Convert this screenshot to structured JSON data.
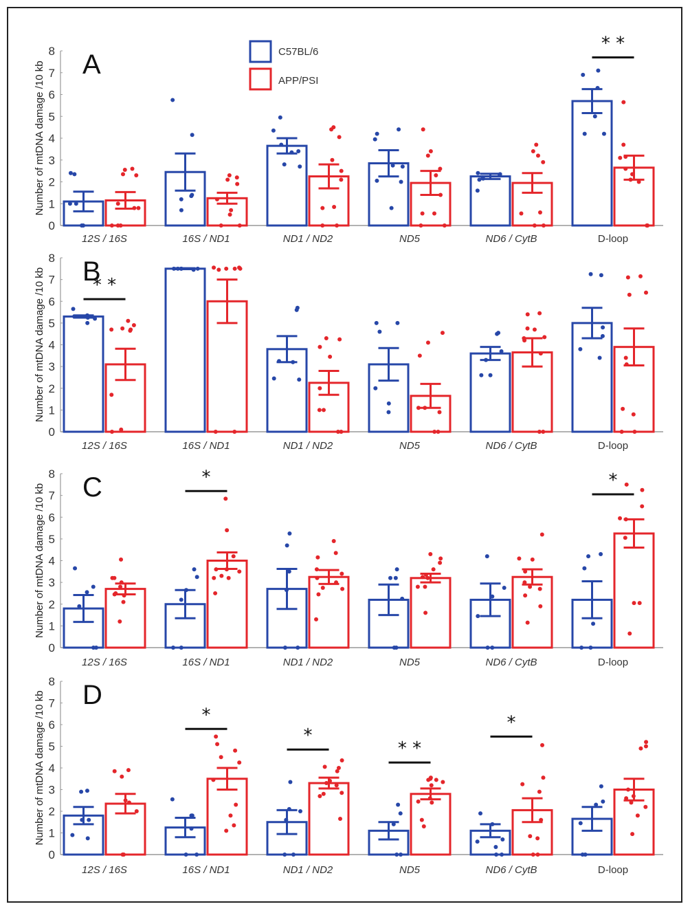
{
  "figure": {
    "legend": [
      {
        "label": "C57BL/6",
        "color": "#2747a8"
      },
      {
        "label": "APP/PSI",
        "color": "#e4262b"
      }
    ],
    "axis_color": "#999999",
    "sig_color": "#111111"
  },
  "chart_data": [
    {
      "type": "bar",
      "title": "A",
      "xlabel": "",
      "ylabel": "Number of mtDNA damage /10 kb",
      "ylim": [
        0,
        8
      ],
      "yticks": [
        0,
        1,
        2,
        3,
        4,
        5,
        6,
        7,
        8
      ],
      "grid": false,
      "legend_position": "top-center",
      "categories": [
        "12S / 16S",
        "16S / ND1",
        "ND1 / ND2",
        "ND5",
        "ND6 / CytB",
        "D-loop"
      ],
      "category_italic": [
        true,
        true,
        true,
        true,
        true,
        false
      ],
      "series": [
        {
          "name": "C57BL/6",
          "values": [
            1.1,
            2.45,
            3.65,
            2.85,
            2.25,
            5.7
          ],
          "sem": [
            0.45,
            0.85,
            0.35,
            0.6,
            0.12,
            0.55
          ],
          "points": [
            [
              0,
              0,
              1.0,
              1.0,
              2.35,
              2.4
            ],
            [
              0.7,
              1.2,
              1.35,
              1.4,
              4.15,
              5.75
            ],
            [
              2.7,
              2.8,
              3.35,
              3.4,
              3.7,
              4.35,
              4.95
            ],
            [
              0.8,
              2.0,
              2.05,
              2.7,
              2.75,
              3.95,
              4.2,
              4.4
            ],
            [
              1.6,
              2.1,
              2.15,
              2.2,
              2.3,
              2.35,
              2.4
            ],
            [
              4.2,
              4.2,
              5.0,
              6.3,
              6.9,
              7.1
            ]
          ]
        },
        {
          "name": "APP/PSI",
          "values": [
            1.15,
            1.25,
            2.25,
            1.95,
            1.95,
            2.65
          ],
          "sem": [
            0.38,
            0.25,
            0.55,
            0.55,
            0.45,
            0.55
          ],
          "points": [
            [
              0,
              0,
              0,
              0.8,
              0.8,
              1.0,
              2.3,
              2.35,
              2.55,
              2.6
            ],
            [
              0,
              0,
              0.5,
              0.7,
              1.2,
              1.9,
              2.1,
              2.2,
              2.3
            ],
            [
              0,
              0,
              0.8,
              0.85,
              2.1,
              2.5,
              3.0,
              4.05,
              4.4,
              4.5
            ],
            [
              0,
              0,
              0.55,
              0.55,
              1.4,
              2.3,
              2.6,
              3.2,
              3.4,
              4.4
            ],
            [
              0,
              0,
              0.55,
              0.6,
              2.9,
              3.2,
              3.4,
              3.7
            ],
            [
              0,
              0,
              2.0,
              2.1,
              2.35,
              2.6,
              3.1,
              3.15,
              3.7,
              5.65
            ]
          ]
        }
      ],
      "significance": [
        {
          "category": "D-loop",
          "label": "**",
          "height": 7.7
        }
      ]
    },
    {
      "type": "bar",
      "title": "B",
      "xlabel": "",
      "ylabel": "Number of mtDNA damage /10 kb",
      "ylim": [
        0,
        8
      ],
      "yticks": [
        0,
        1,
        2,
        3,
        4,
        5,
        6,
        7,
        8
      ],
      "grid": false,
      "categories": [
        "12S / 16S",
        "16S / ND1",
        "ND1 / ND2",
        "ND5",
        "ND6 / CytB",
        "D-loop"
      ],
      "category_italic": [
        true,
        true,
        true,
        true,
        true,
        false
      ],
      "series": [
        {
          "name": "C57BL/6",
          "values": [
            5.3,
            7.5,
            3.8,
            3.1,
            3.6,
            5.0
          ],
          "sem": [
            0.05,
            0.02,
            0.6,
            0.75,
            0.3,
            0.7
          ],
          "points": [
            [
              5.0,
              5.2,
              5.25,
              5.3,
              5.3,
              5.35,
              5.65
            ],
            [
              7.45,
              7.5,
              7.5,
              7.5,
              7.5,
              7.5
            ],
            [
              2.4,
              2.45,
              3.2,
              3.25,
              5.6,
              5.7
            ],
            [
              0.9,
              1.3,
              2.0,
              4.6,
              5.0,
              5.0
            ],
            [
              2.6,
              2.6,
              3.3,
              3.7,
              4.5,
              4.55
            ],
            [
              3.4,
              3.8,
              4.4,
              4.8,
              7.2,
              7.25
            ]
          ]
        },
        {
          "name": "APP/PSI",
          "values": [
            3.1,
            6.0,
            2.25,
            1.65,
            3.65,
            3.9
          ],
          "sem": [
            0.72,
            1.0,
            0.55,
            0.55,
            0.65,
            0.85
          ],
          "points": [
            [
              0,
              0.1,
              1.7,
              4.65,
              4.7,
              4.7,
              4.75,
              4.9,
              5.1
            ],
            [
              0,
              0,
              7.45,
              7.5,
              7.5,
              7.5,
              7.55,
              7.55
            ],
            [
              0,
              0,
              1.0,
              1.0,
              2.0,
              3.45,
              3.9,
              4.25,
              4.3
            ],
            [
              0,
              0,
              0.9,
              1.1,
              1.1,
              3.5,
              4.1,
              4.55
            ],
            [
              0,
              0,
              3.6,
              4.2,
              4.3,
              4.35,
              4.7,
              4.75,
              5.4,
              5.45
            ],
            [
              0,
              0,
              0.8,
              1.05,
              3.1,
              3.4,
              6.3,
              6.4,
              7.1,
              7.15
            ]
          ]
        }
      ],
      "significance": [
        {
          "category": "12S / 16S",
          "label": "**",
          "height": 6.1
        }
      ]
    },
    {
      "type": "bar",
      "title": "C",
      "xlabel": "",
      "ylabel": "Number of mtDNA damage /10 kb",
      "ylim": [
        0,
        8
      ],
      "yticks": [
        0,
        1,
        2,
        3,
        4,
        5,
        6,
        7,
        8
      ],
      "grid": false,
      "categories": [
        "12S / 16S",
        "16S / ND1",
        "ND1 / ND2",
        "ND5",
        "ND6 / CytB",
        "D-loop"
      ],
      "category_italic": [
        true,
        true,
        true,
        true,
        true,
        false
      ],
      "series": [
        {
          "name": "C57BL/6",
          "values": [
            1.8,
            2.0,
            2.7,
            2.2,
            2.2,
            2.2
          ],
          "sem": [
            0.62,
            0.65,
            0.92,
            0.7,
            0.75,
            0.85
          ],
          "points": [
            [
              0,
              0,
              1.9,
              2.55,
              2.8,
              3.65
            ],
            [
              0,
              0,
              2.2,
              2.65,
              3.25,
              3.6
            ],
            [
              0,
              0,
              2.65,
              3.5,
              4.7,
              5.25
            ],
            [
              0,
              0,
              2.25,
              3.2,
              3.2,
              3.6
            ],
            [
              0,
              0,
              1.45,
              2.35,
              2.75,
              4.2
            ],
            [
              0,
              0,
              1.1,
              3.65,
              4.2,
              4.3
            ]
          ]
        },
        {
          "name": "APP/PSI",
          "values": [
            2.7,
            4.0,
            3.25,
            3.2,
            3.25,
            5.25
          ],
          "sem": [
            0.25,
            0.38,
            0.32,
            0.2,
            0.35,
            0.65
          ],
          "points": [
            [
              1.2,
              2.1,
              2.4,
              2.45,
              2.5,
              2.8,
              3.0,
              3.2,
              3.2,
              4.05
            ],
            [
              2.5,
              3.2,
              3.2,
              3.3,
              3.5,
              3.6,
              3.6,
              4.2,
              5.4,
              6.85
            ],
            [
              1.3,
              2.45,
              2.7,
              2.75,
              3.0,
              3.2,
              3.4,
              3.6,
              4.15,
              4.35,
              4.9
            ],
            [
              1.6,
              2.8,
              2.8,
              3.2,
              3.25,
              3.35,
              3.6,
              3.9,
              4.1,
              4.3
            ],
            [
              1.15,
              1.9,
              2.4,
              2.7,
              2.8,
              3.0,
              3.5,
              4.05,
              4.1,
              5.2
            ],
            [
              0.65,
              2.05,
              2.05,
              5.05,
              5.9,
              5.95,
              6.5,
              7.25,
              7.5
            ]
          ]
        }
      ],
      "significance": [
        {
          "category": "16S / ND1",
          "label": "*",
          "height": 7.2
        },
        {
          "category": "D-loop",
          "label": "*",
          "height": 7.05
        }
      ]
    },
    {
      "type": "bar",
      "title": "D",
      "xlabel": "",
      "ylabel": "Number of mtDNA damage /10 kb",
      "ylim": [
        0,
        8
      ],
      "yticks": [
        0,
        1,
        2,
        3,
        4,
        5,
        6,
        7,
        8
      ],
      "grid": false,
      "categories": [
        "12S / 16S",
        "16S / ND1",
        "ND1 / ND2",
        "ND5",
        "ND6 / CytB",
        "D-loop"
      ],
      "category_italic": [
        true,
        true,
        true,
        true,
        true,
        false
      ],
      "series": [
        {
          "name": "C57BL/6",
          "values": [
            1.8,
            1.25,
            1.5,
            1.1,
            1.1,
            1.65
          ],
          "sem": [
            0.4,
            0.45,
            0.55,
            0.4,
            0.3,
            0.55
          ],
          "points": [
            [
              0.75,
              0.9,
              1.6,
              1.6,
              2.9,
              2.95
            ],
            [
              0,
              0,
              1.2,
              1.8,
              1.8,
              2.55
            ],
            [
              0,
              0,
              1.6,
              2.0,
              2.1,
              3.35
            ],
            [
              0,
              0,
              1.4,
              1.9,
              2.3
            ],
            [
              0,
              0,
              0.35,
              0.6,
              0.7,
              1.4,
              1.9
            ],
            [
              0,
              0,
              1.45,
              2.3,
              2.45,
              3.15
            ]
          ]
        },
        {
          "name": "APP/PSI",
          "values": [
            2.35,
            3.5,
            3.3,
            2.8,
            2.05,
            3.0
          ],
          "sem": [
            0.45,
            0.5,
            0.25,
            0.25,
            0.55,
            0.5
          ],
          "points": [
            [
              0,
              0,
              2.0,
              2.4,
              2.5,
              3.6,
              3.85,
              3.9
            ],
            [
              1.1,
              1.35,
              1.8,
              2.3,
              3.45,
              4.25,
              4.5,
              4.8,
              5.1,
              5.45
            ],
            [
              1.65,
              2.7,
              2.8,
              2.85,
              3.2,
              3.3,
              3.4,
              3.85,
              4.0,
              4.05,
              4.35
            ],
            [
              1.3,
              1.6,
              2.4,
              2.45,
              2.6,
              3.2,
              3.35,
              3.45,
              3.45,
              3.5,
              3.55
            ],
            [
              0,
              0,
              0.75,
              0.85,
              1.6,
              2.9,
              3.25,
              3.55,
              5.05
            ],
            [
              0.95,
              1.8,
              2.2,
              2.4,
              2.6,
              2.7,
              3.0,
              4.9,
              5.0,
              5.2
            ]
          ]
        }
      ],
      "significance": [
        {
          "category": "16S / ND1",
          "label": "*",
          "height": 5.8
        },
        {
          "category": "ND1 / ND2",
          "label": "*",
          "height": 4.85
        },
        {
          "category": "ND5",
          "label": "**",
          "height": 4.25
        },
        {
          "category": "ND6 / CytB",
          "label": "*",
          "height": 5.45
        }
      ]
    }
  ]
}
